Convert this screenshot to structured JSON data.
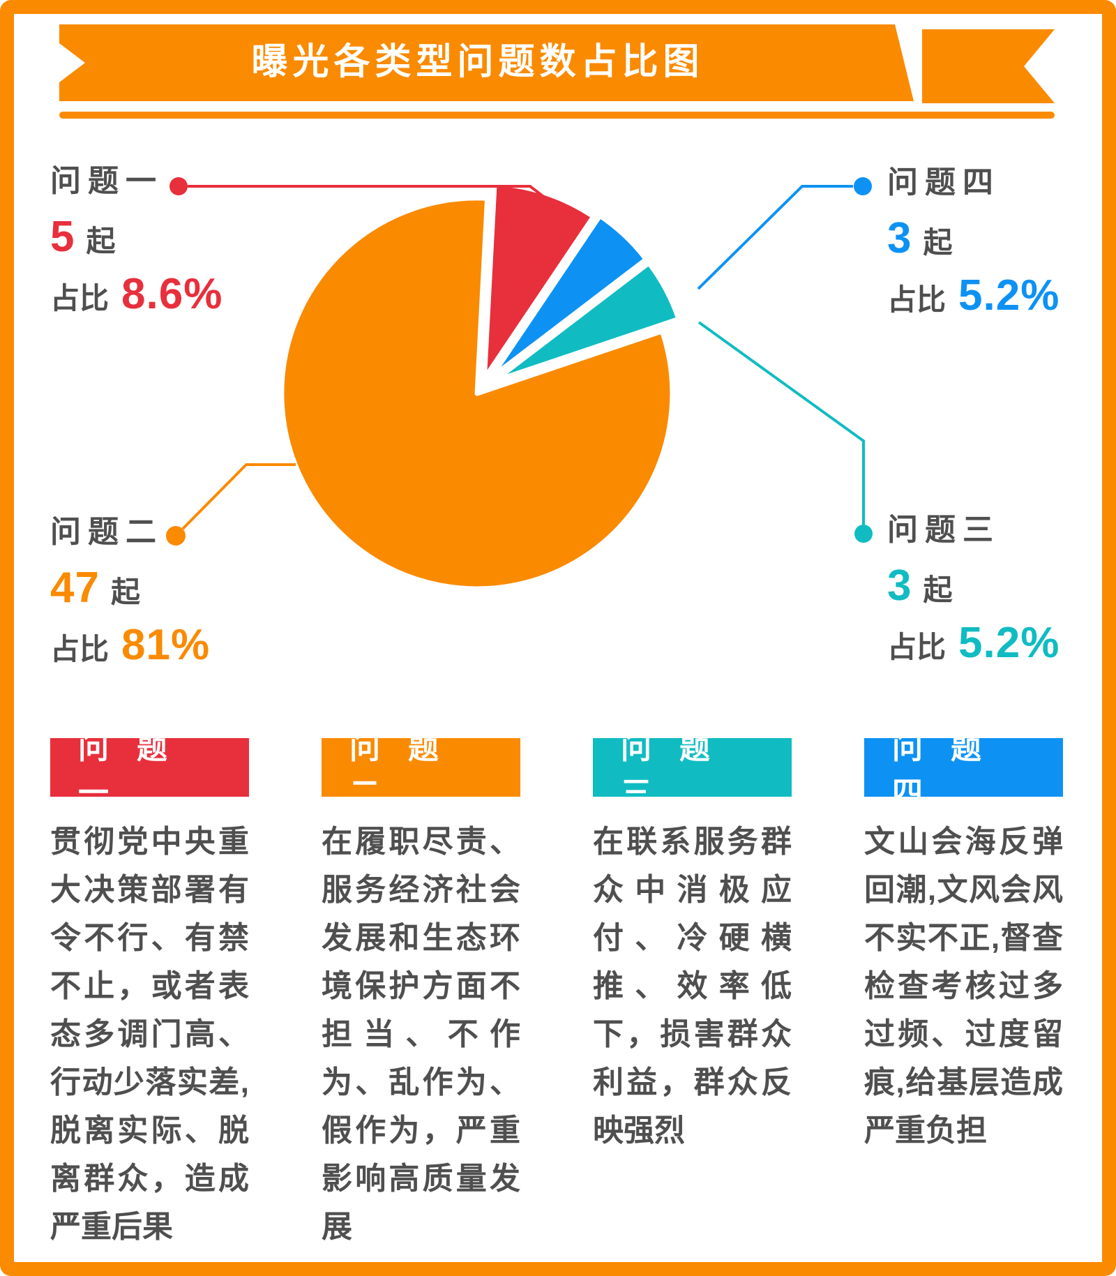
{
  "banner": {
    "title": "曝光各类型问题数占比图",
    "color": "#FA8A00"
  },
  "colors": {
    "orange": "#FA8A00",
    "red": "#E82F3C",
    "teal": "#10BCC2",
    "blue": "#0D92F4",
    "text_gray": "#4F4F4F"
  },
  "chart_data": {
    "type": "pie",
    "title": "曝光各类型问题数占比图",
    "unit": "起",
    "start_angle_deg": 3,
    "legend_position": "callouts",
    "segments": [
      {
        "label": "问题一",
        "value": 8.6,
        "count": 5,
        "color": "#E82F3C",
        "explode": 14
      },
      {
        "label": "问题四",
        "value": 5.2,
        "count": 3,
        "color": "#0D92F4",
        "explode": 20
      },
      {
        "label": "问题三",
        "value": 5.2,
        "count": 3,
        "color": "#10BCC2",
        "explode": 20
      },
      {
        "label": "问题二",
        "value": 81,
        "count": 47,
        "color": "#FA8A00",
        "explode": 10
      }
    ]
  },
  "callouts": [
    {
      "label": "问题一",
      "count": "5",
      "unit": "起",
      "ratio_label": "占比",
      "percent": "8.6%",
      "color": "#E82F3C"
    },
    {
      "label": "问题二",
      "count": "47",
      "unit": "起",
      "ratio_label": "占比",
      "percent": "81%",
      "color": "#FA8A00"
    },
    {
      "label": "问题三",
      "count": "3",
      "unit": "起",
      "ratio_label": "占比",
      "percent": "5.2%",
      "color": "#10BCC2"
    },
    {
      "label": "问题四",
      "count": "3",
      "unit": "起",
      "ratio_label": "占比",
      "percent": "5.2%",
      "color": "#0D92F4"
    }
  ],
  "columns": [
    {
      "header": "问题一",
      "color": "#E82F3C",
      "body": "贯彻党中央重大决策部署有令不行、有禁不止，或者表态多调门高、行动少落实差,脱离实际、脱离群众，造成严重后果"
    },
    {
      "header": "问题二",
      "color": "#FA8A00",
      "body": "在履职尽责、服务经济社会发展和生态环境保护方面不担当、不作为、乱作为、假作为，严重影响高质量发展"
    },
    {
      "header": "问题三",
      "color": "#10BCC2",
      "body": "在联系服务群众中消极应付、冷硬横推、效率低下，损害群众利益，群众反映强烈"
    },
    {
      "header": "问题四",
      "color": "#0D92F4",
      "body": "文山会海反弹回潮,文风会风不实不正,督查检查考核过多过频、过度留痕,给基层造成严重负担"
    }
  ]
}
